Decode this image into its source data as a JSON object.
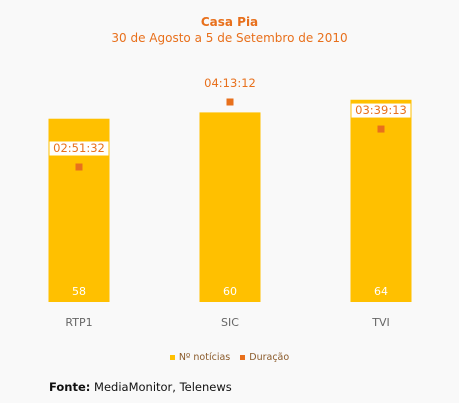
{
  "title": "Casa Pia",
  "subtitle": "30 de Agosto a 5 de Setembro de 2010",
  "colors": {
    "bar": "#ffc000",
    "point": "#e8701c",
    "label": "#e8701c",
    "axis_label": "#666666"
  },
  "chart_data": {
    "type": "bar",
    "title": "Casa Pia",
    "subtitle": "30 de Agosto a 5 de Setembro de 2010",
    "categories": [
      "RTP1",
      "SIC",
      "TVI"
    ],
    "series": [
      {
        "name": "Nº notícias",
        "type": "bar",
        "values": [
          58,
          60,
          64
        ],
        "value_labels": [
          "58",
          "60",
          "64"
        ]
      },
      {
        "name": "Duração",
        "type": "scatter",
        "values": [
          "02:51:32",
          "04:13:12",
          "03:39:13"
        ],
        "value_labels": [
          "02:51:32",
          "04:13:12",
          "03:39:13"
        ]
      }
    ],
    "legend_position": "bottom",
    "grid": false
  },
  "legend": [
    {
      "label": "Nº notícias",
      "color": "#ffc000"
    },
    {
      "label": "Duração",
      "color": "#e8701c"
    }
  ],
  "source": {
    "label": "Fonte:",
    "text": " MediaMonitor, Telenews"
  }
}
